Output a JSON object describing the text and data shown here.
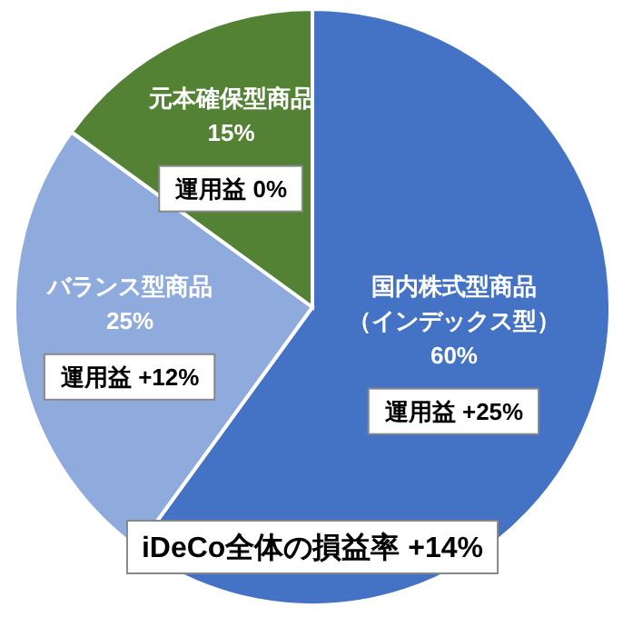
{
  "chart_data": {
    "type": "pie",
    "categories": [
      "国内株式型商品（インデックス型）",
      "バランス型商品",
      "元本確保型商品"
    ],
    "values": [
      60,
      25,
      15
    ],
    "colors": [
      "#4472c4",
      "#8faadc",
      "#548235"
    ],
    "value_labels": [
      "60%",
      "25%",
      "15%"
    ],
    "annotations": [
      "運用益 +25%",
      "運用益 +12%",
      "運用益 0%",
      "iDeCo全体の損益率 +14%"
    ]
  }
}
